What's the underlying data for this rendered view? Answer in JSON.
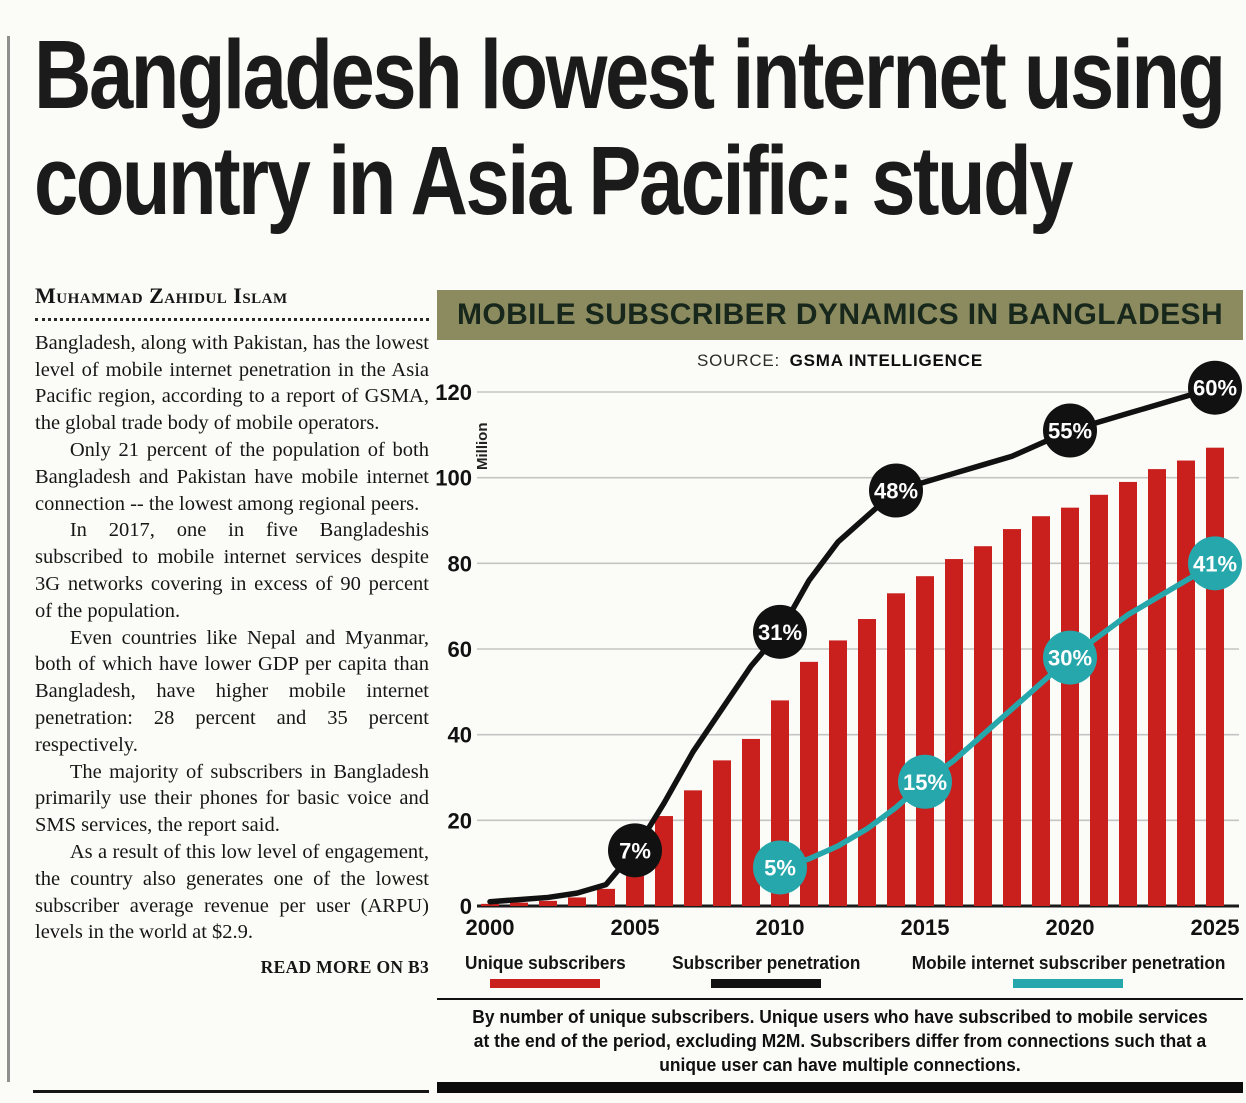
{
  "article": {
    "headline_lines": [
      "Bangladesh lowest internet using",
      "country in Asia Pacific: study"
    ],
    "byline": "Muhammad Zahidul Islam",
    "paragraphs": [
      "Bangladesh, along with Pakistan, has the lowest level of mobile internet penetration in the Asia Pacific region, according to a report of GSMA, the global trade body of mobile operators.",
      "Only 21 percent of the population of both Bangladesh and Pakistan have mobile internet connection -- the lowest among regional peers.",
      "In 2017, one in five Bangladeshis subscribed to mobile internet services despite 3G networks covering in excess of 90 percent of the population.",
      "Even countries like Nepal and Myanmar, both of which have lower GDP per capita than Bangladesh, have higher mobile internet penetration: 28 percent and 35 percent respectively.",
      "The majority of subscribers in Bangladesh primarily use their phones for basic voice and SMS services, the report said.",
      "As a result of this low level of engagement, the country also generates one of the lowest subscriber average revenue per user (ARPU) levels in the world at $2.9."
    ],
    "read_more": "READ MORE ON B3"
  },
  "chart": {
    "title": "MOBILE SUBSCRIBER DYNAMICS IN BANGLADESH",
    "source_label": "SOURCE:",
    "source_value": "GSMA INTELLIGENCE",
    "legend": [
      {
        "label": "Unique subscribers",
        "color": "#c9201e"
      },
      {
        "label": "Subscriber penetration",
        "color": "#111111"
      },
      {
        "label": "Mobile internet  subscriber penetration",
        "color": "#25a7ab"
      }
    ],
    "footnote": "By number of unique subscribers. Unique users who have subscribed to mobile services at the end of the period, excluding M2M. Subscribers differ from connections such that a unique user can have multiple connections."
  },
  "chart_data": {
    "type": "combo-bar-line",
    "title": "MOBILE SUBSCRIBER DYNAMICS IN BANGLADESH",
    "source": "SOURCE: GSMA INTELLIGENCE",
    "ylabel": "Million",
    "ylim": [
      0,
      120
    ],
    "yticks": [
      0,
      20,
      40,
      60,
      80,
      100,
      120
    ],
    "xticks": [
      2000,
      2005,
      2010,
      2015,
      2020,
      2025
    ],
    "grid": true,
    "years": [
      2000,
      2001,
      2002,
      2003,
      2004,
      2005,
      2006,
      2007,
      2008,
      2009,
      2010,
      2011,
      2012,
      2013,
      2014,
      2015,
      2016,
      2017,
      2018,
      2019,
      2020,
      2021,
      2022,
      2023,
      2024,
      2025
    ],
    "bars": {
      "name": "Unique subscribers (million)",
      "color": "#c9201e",
      "values": [
        0.5,
        0.8,
        1.2,
        2,
        4,
        16,
        21,
        27,
        34,
        39,
        48,
        57,
        62,
        67,
        73,
        77,
        81,
        84,
        88,
        91,
        93,
        96,
        99,
        102,
        104,
        107
      ]
    },
    "lines": [
      {
        "id": "subscriber-penetration",
        "name": "Subscriber penetration",
        "color": "#111111",
        "start_year": 2000,
        "values": [
          1,
          1.5,
          2,
          3,
          5,
          13,
          24,
          36,
          46,
          56,
          64,
          76,
          85,
          91,
          97,
          99,
          101,
          103,
          105,
          108,
          111,
          113,
          115,
          117,
          119,
          121
        ],
        "markers": [
          {
            "year": 2005,
            "label": "7%"
          },
          {
            "year": 2010,
            "label": "31%"
          },
          {
            "year": 2014,
            "label": "48%"
          },
          {
            "year": 2020,
            "label": "55%"
          },
          {
            "year": 2025,
            "label": "60%"
          }
        ]
      },
      {
        "id": "mobile-internet-penetration",
        "name": "Mobile internet subscriber penetration",
        "color": "#25a7ab",
        "start_year": 2010,
        "values": [
          9,
          11,
          14,
          18,
          23,
          29,
          34,
          40,
          46,
          52,
          58,
          63,
          68,
          72,
          76,
          80
        ],
        "markers": [
          {
            "year": 2010,
            "label": "5%"
          },
          {
            "year": 2015,
            "label": "15%"
          },
          {
            "year": 2020,
            "label": "30%"
          },
          {
            "year": 2025,
            "label": "41%"
          }
        ]
      }
    ]
  }
}
